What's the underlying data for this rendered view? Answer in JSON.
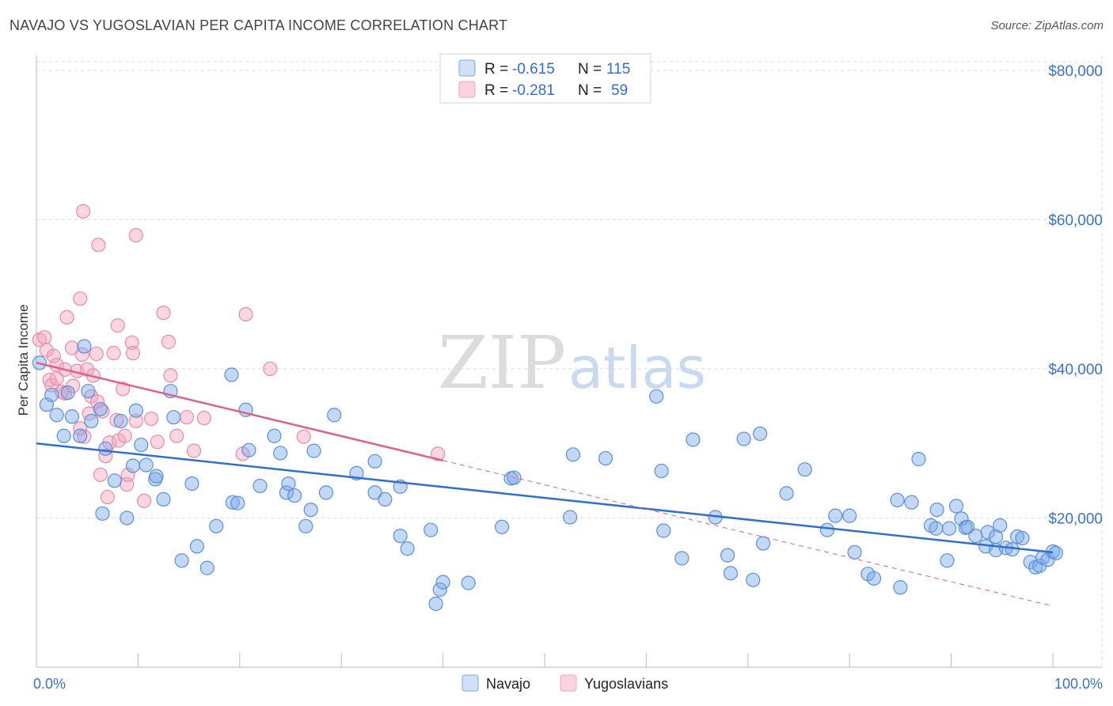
{
  "header": {
    "title": "NAVAJO VS YUGOSLAVIAN PER CAPITA INCOME CORRELATION CHART",
    "source": "Source: ZipAtlas.com"
  },
  "watermark": {
    "part1": "ZIP",
    "part2": "atlas"
  },
  "legend": {
    "rows": [
      {
        "r_label": "R =",
        "r_value": "-0.615",
        "n_label": "N =",
        "n_value": "115",
        "color": "#7aa8e8"
      },
      {
        "r_label": "R =",
        "r_value": "-0.281",
        "n_label": "N =",
        "n_value": "59",
        "color": "#f2a3bd"
      }
    ]
  },
  "bottom_legend": [
    "Navajo",
    "Yugoslavians"
  ],
  "colors": {
    "navajo": "#7aa8e8",
    "navajo_line": "#2f6fd1",
    "yugo": "#f2a3bd",
    "yugo_line": "#e0608a"
  },
  "chart_data": {
    "type": "scatter",
    "xlabel": "",
    "ylabel": "Per Capita Income",
    "x_tick_labels": [
      "0.0%",
      "100.0%"
    ],
    "y_tick_labels": [
      "$20,000",
      "$40,000",
      "$60,000",
      "$80,000"
    ],
    "y_tick_values": [
      20000,
      40000,
      60000,
      80000
    ],
    "xlim": [
      0,
      100
    ],
    "ylim": [
      0,
      82000
    ],
    "grid": true,
    "series": [
      {
        "name": "Navajo",
        "points": [
          [
            0.3,
            40800
          ],
          [
            1.0,
            35200
          ],
          [
            1.5,
            36500
          ],
          [
            2.0,
            33800
          ],
          [
            2.7,
            31000
          ],
          [
            3.1,
            36800
          ],
          [
            3.5,
            33600
          ],
          [
            4.3,
            31000
          ],
          [
            4.7,
            43000
          ],
          [
            5.4,
            33000
          ],
          [
            6.3,
            34600
          ],
          [
            6.5,
            20600
          ],
          [
            6.8,
            29300
          ],
          [
            7.7,
            25000
          ],
          [
            8.3,
            33000
          ],
          [
            8.9,
            20000
          ],
          [
            9.5,
            27000
          ],
          [
            9.8,
            34400
          ],
          [
            10.3,
            29800
          ],
          [
            10.8,
            27100
          ],
          [
            11.7,
            25200
          ],
          [
            11.8,
            25600
          ],
          [
            12.5,
            22500
          ],
          [
            13.2,
            37000
          ],
          [
            13.5,
            33500
          ],
          [
            14.3,
            14300
          ],
          [
            15.3,
            24600
          ],
          [
            15.8,
            16200
          ],
          [
            16.8,
            13300
          ],
          [
            17.7,
            18900
          ],
          [
            19.3,
            22100
          ],
          [
            19.2,
            39200
          ],
          [
            19.8,
            22000
          ],
          [
            20.6,
            34500
          ],
          [
            20.9,
            29100
          ],
          [
            22.0,
            24300
          ],
          [
            23.4,
            31000
          ],
          [
            24.0,
            28700
          ],
          [
            24.6,
            23400
          ],
          [
            24.8,
            24600
          ],
          [
            25.4,
            23000
          ],
          [
            26.5,
            18900
          ],
          [
            27.0,
            21100
          ],
          [
            27.3,
            29000
          ],
          [
            28.5,
            23400
          ],
          [
            29.3,
            33800
          ],
          [
            31.5,
            26000
          ],
          [
            33.3,
            23400
          ],
          [
            33.3,
            27600
          ],
          [
            34.3,
            22500
          ],
          [
            35.8,
            17600
          ],
          [
            35.8,
            24200
          ],
          [
            36.5,
            15900
          ],
          [
            38.8,
            18400
          ],
          [
            39.7,
            10400
          ],
          [
            40.0,
            11400
          ],
          [
            39.3,
            8500
          ],
          [
            42.5,
            11300
          ],
          [
            45.8,
            18800
          ],
          [
            46.7,
            25300
          ],
          [
            47.0,
            25400
          ],
          [
            52.5,
            20100
          ],
          [
            52.8,
            28500
          ],
          [
            56.0,
            28000
          ],
          [
            61.0,
            36300
          ],
          [
            61.5,
            26300
          ],
          [
            61.7,
            18300
          ],
          [
            63.5,
            14600
          ],
          [
            64.6,
            30500
          ],
          [
            66.8,
            20100
          ],
          [
            68.0,
            15000
          ],
          [
            68.3,
            12600
          ],
          [
            69.6,
            30600
          ],
          [
            70.5,
            11700
          ],
          [
            71.2,
            31300
          ],
          [
            71.5,
            16600
          ],
          [
            73.8,
            23300
          ],
          [
            75.6,
            26500
          ],
          [
            77.8,
            18400
          ],
          [
            78.6,
            20300
          ],
          [
            80.0,
            20300
          ],
          [
            80.5,
            15400
          ],
          [
            81.8,
            12500
          ],
          [
            82.4,
            11900
          ],
          [
            84.7,
            22400
          ],
          [
            85.0,
            10700
          ],
          [
            86.1,
            22100
          ],
          [
            86.8,
            27900
          ],
          [
            88.0,
            19000
          ],
          [
            88.5,
            18600
          ],
          [
            88.6,
            21100
          ],
          [
            89.6,
            14300
          ],
          [
            89.8,
            18600
          ],
          [
            90.5,
            21600
          ],
          [
            91.0,
            19900
          ],
          [
            91.4,
            18700
          ],
          [
            91.6,
            18800
          ],
          [
            92.4,
            17600
          ],
          [
            93.4,
            16200
          ],
          [
            93.6,
            18100
          ],
          [
            94.4,
            15700
          ],
          [
            94.4,
            17500
          ],
          [
            94.8,
            19000
          ],
          [
            95.4,
            16000
          ],
          [
            96.0,
            15800
          ],
          [
            96.5,
            17500
          ],
          [
            97.0,
            17300
          ],
          [
            97.8,
            14100
          ],
          [
            98.3,
            13400
          ],
          [
            98.7,
            13600
          ],
          [
            99.0,
            14700
          ],
          [
            99.5,
            14400
          ],
          [
            100.0,
            15500
          ],
          [
            100.3,
            15300
          ],
          [
            5.1,
            37000
          ]
        ]
      },
      {
        "name": "Yugoslavians",
        "points": [
          [
            0.3,
            43900
          ],
          [
            0.8,
            44200
          ],
          [
            1.0,
            42500
          ],
          [
            1.3,
            38500
          ],
          [
            1.5,
            37800
          ],
          [
            1.7,
            41700
          ],
          [
            2.0,
            40500
          ],
          [
            2.0,
            38700
          ],
          [
            2.5,
            36900
          ],
          [
            2.8,
            39900
          ],
          [
            2.8,
            36700
          ],
          [
            3.0,
            46900
          ],
          [
            3.5,
            42800
          ],
          [
            3.6,
            37700
          ],
          [
            4.0,
            39700
          ],
          [
            4.3,
            32000
          ],
          [
            4.3,
            49400
          ],
          [
            4.5,
            41900
          ],
          [
            4.7,
            30900
          ],
          [
            5.0,
            39900
          ],
          [
            5.2,
            34000
          ],
          [
            5.4,
            36300
          ],
          [
            5.6,
            39100
          ],
          [
            5.9,
            42000
          ],
          [
            6.0,
            35600
          ],
          [
            6.3,
            25800
          ],
          [
            6.5,
            34300
          ],
          [
            6.8,
            28300
          ],
          [
            7.0,
            22800
          ],
          [
            7.2,
            30100
          ],
          [
            7.6,
            42100
          ],
          [
            7.9,
            33100
          ],
          [
            8.1,
            30400
          ],
          [
            8.5,
            37300
          ],
          [
            8.7,
            31000
          ],
          [
            8.9,
            24500
          ],
          [
            9.0,
            25800
          ],
          [
            9.4,
            43500
          ],
          [
            9.5,
            42100
          ],
          [
            9.8,
            33000
          ],
          [
            10.6,
            22300
          ],
          [
            11.3,
            33300
          ],
          [
            11.9,
            30200
          ],
          [
            12.5,
            47500
          ],
          [
            13.0,
            43600
          ],
          [
            13.2,
            39100
          ],
          [
            13.8,
            31000
          ],
          [
            14.8,
            33500
          ],
          [
            15.5,
            29000
          ],
          [
            16.5,
            33400
          ],
          [
            20.3,
            28600
          ],
          [
            20.6,
            47300
          ],
          [
            23.0,
            40000
          ],
          [
            26.3,
            30900
          ],
          [
            39.5,
            28600
          ],
          [
            4.6,
            61100
          ],
          [
            6.1,
            56600
          ],
          [
            9.8,
            57900
          ],
          [
            8.0,
            45800
          ]
        ]
      }
    ],
    "trendlines": [
      {
        "series": "Navajo",
        "x": [
          0,
          100
        ],
        "y": [
          30000,
          15400
        ]
      },
      {
        "series": "Yugoslavians",
        "x": [
          0,
          40
        ],
        "y": [
          40800,
          27700
        ],
        "dashed_extension_to": [
          100,
          8200
        ]
      }
    ]
  }
}
